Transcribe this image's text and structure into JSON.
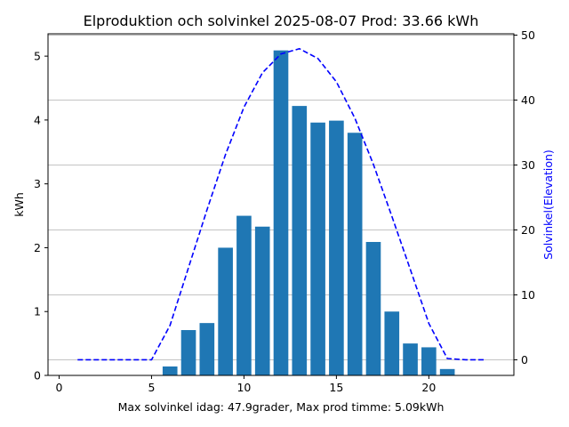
{
  "chart_data": {
    "type": "bar",
    "title": "Elproduktion och solvinkel 2025-08-07 Prod: 33.66 kWh",
    "xlabel": "Max solvinkel idag: 47.9grader, Max prod timme: 5.09kWh",
    "ylabel": "kWh",
    "y2label": "Solvinkel(Elevation)",
    "xlim": [
      -0.6,
      24.6
    ],
    "ylim": [
      0,
      5.35
    ],
    "y2lim": [
      -2.4,
      50.2
    ],
    "xticks": [
      0,
      5,
      10,
      15,
      20
    ],
    "yticks": [
      0,
      1,
      2,
      3,
      4,
      5
    ],
    "y2ticks": [
      0,
      10,
      20,
      30,
      40,
      50
    ],
    "grid": "horizontal lines at right-axis ticks",
    "bar_color": "#1f77b4",
    "line_color": "#0000ff",
    "series": [
      {
        "kind": "bar",
        "axis": "left",
        "x": [
          6,
          7,
          8,
          9,
          10,
          11,
          12,
          13,
          14,
          15,
          16,
          17,
          18,
          19,
          20,
          21
        ],
        "values": [
          0.14,
          0.71,
          0.82,
          2.0,
          2.5,
          2.33,
          5.09,
          4.22,
          3.96,
          3.99,
          3.8,
          2.09,
          1.0,
          0.5,
          0.44,
          0.1
        ]
      },
      {
        "kind": "line",
        "style": "dashed",
        "axis": "right",
        "x": [
          1,
          2,
          3,
          4,
          5,
          6,
          7,
          8,
          9,
          10,
          11,
          12,
          13,
          14,
          15,
          16,
          17,
          18,
          19,
          20,
          21,
          22,
          23
        ],
        "values": [
          0,
          0,
          0,
          0,
          0,
          5.3,
          14.2,
          23.1,
          31.6,
          38.9,
          44.2,
          47.1,
          47.9,
          46.4,
          42.8,
          37.2,
          30.1,
          22.1,
          13.9,
          5.6,
          0.2,
          0,
          0
        ]
      }
    ]
  }
}
